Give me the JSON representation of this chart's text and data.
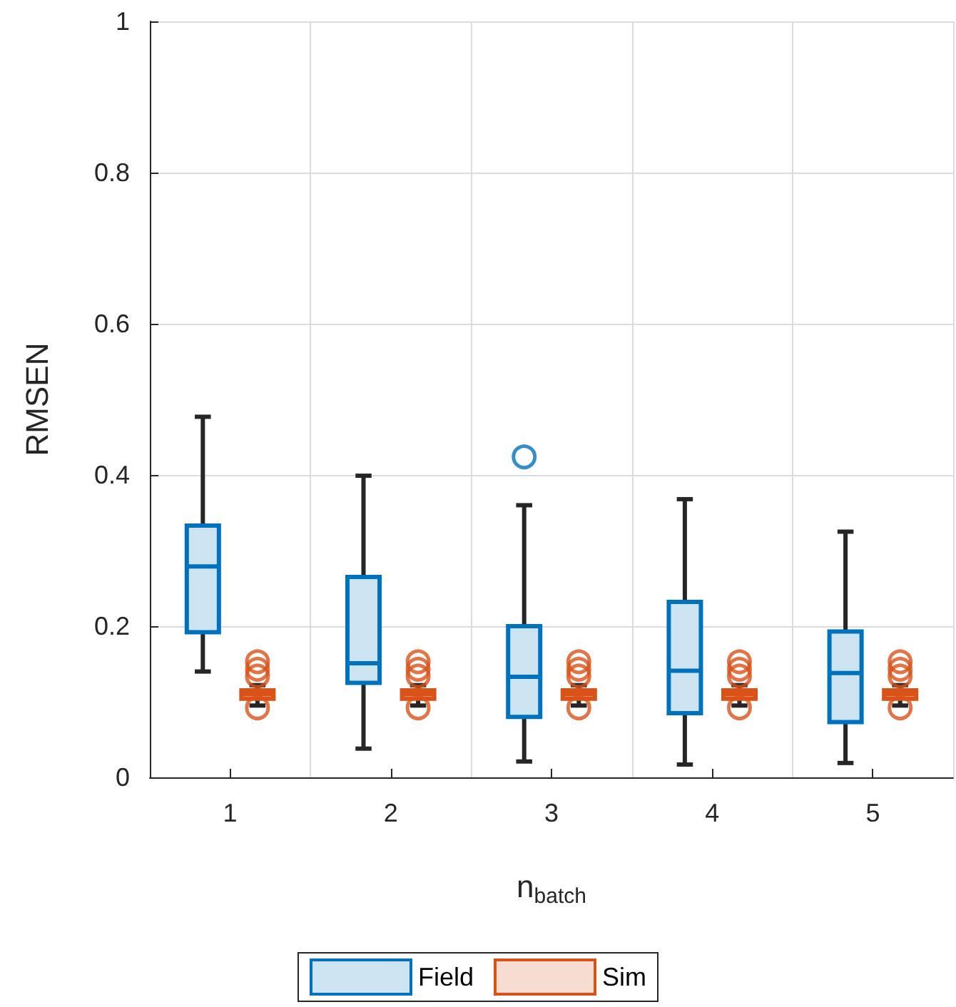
{
  "chart_data": {
    "type": "box",
    "xlabel": "n$_{batch}$",
    "ylabel": "RMSEN",
    "categories": [
      "1",
      "2",
      "3",
      "4",
      "5"
    ],
    "series": [
      {
        "name": "Field",
        "color": "#0072bd",
        "boxes": [
          {
            "low": 0.14,
            "q1": 0.192,
            "median": 0.279,
            "q3": 0.333,
            "high": 0.477
          },
          {
            "low": 0.038,
            "q1": 0.125,
            "median": 0.151,
            "q3": 0.265,
            "high": 0.399
          },
          {
            "low": 0.021,
            "q1": 0.08,
            "median": 0.133,
            "q3": 0.2,
            "high": 0.36,
            "outliers": [
              0.424
            ]
          },
          {
            "low": 0.017,
            "q1": 0.085,
            "median": 0.141,
            "q3": 0.232,
            "high": 0.368
          },
          {
            "low": 0.019,
            "q1": 0.073,
            "median": 0.138,
            "q3": 0.193,
            "high": 0.325
          }
        ]
      },
      {
        "name": "Sim",
        "color": "#d95319",
        "boxes": [
          {
            "low": 0.095,
            "q1": 0.104,
            "median": 0.11,
            "q3": 0.115,
            "high": 0.122,
            "outliers": [
              0.153,
              0.143,
              0.134,
              0.092
            ]
          },
          {
            "low": 0.095,
            "q1": 0.104,
            "median": 0.11,
            "q3": 0.115,
            "high": 0.122,
            "outliers": [
              0.153,
              0.143,
              0.134,
              0.092
            ]
          },
          {
            "low": 0.095,
            "q1": 0.104,
            "median": 0.11,
            "q3": 0.115,
            "high": 0.122,
            "outliers": [
              0.153,
              0.143,
              0.134,
              0.092
            ]
          },
          {
            "low": 0.095,
            "q1": 0.104,
            "median": 0.11,
            "q3": 0.115,
            "high": 0.122,
            "outliers": [
              0.153,
              0.143,
              0.134,
              0.092
            ]
          },
          {
            "low": 0.095,
            "q1": 0.104,
            "median": 0.11,
            "q3": 0.115,
            "high": 0.122,
            "outliers": [
              0.153,
              0.143,
              0.134,
              0.092
            ]
          }
        ]
      }
    ],
    "ylim": [
      0,
      1
    ],
    "yticks": [
      0,
      0.2,
      0.4,
      0.6,
      0.8,
      1
    ],
    "grid": true,
    "legend": "bottom"
  }
}
